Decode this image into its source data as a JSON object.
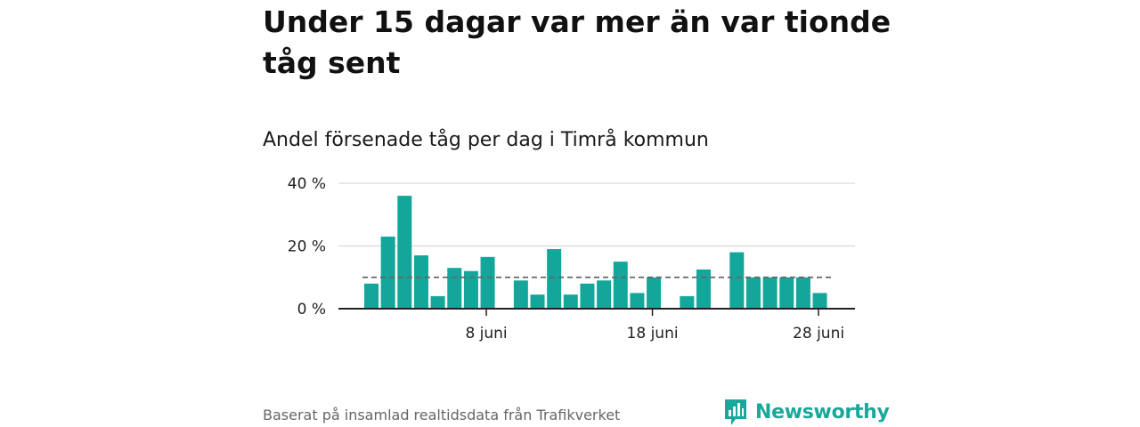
{
  "title": "Under 15 dagar var mer än var tionde tåg sent",
  "subtitle": "Andel försenade tåg per dag i Timrå kommun",
  "source": "Baserat på insamlad realtidsdata från Trafikverket",
  "brand": {
    "name": "Newsworthy",
    "color": "#1aa89a"
  },
  "chart_data": {
    "type": "bar",
    "x_unit": "day of June",
    "x": [
      1,
      2,
      3,
      4,
      5,
      6,
      7,
      8,
      9,
      10,
      11,
      12,
      13,
      14,
      15,
      16,
      17,
      18,
      19,
      20,
      21,
      22,
      23,
      24,
      25,
      26,
      27,
      28
    ],
    "values": [
      8,
      23,
      36,
      17,
      4,
      13,
      12,
      16.5,
      null,
      9,
      4.5,
      19,
      4.5,
      8,
      9,
      15,
      5,
      10,
      null,
      4,
      12.5,
      null,
      18,
      10,
      10,
      10,
      10,
      5
    ],
    "ylim": [
      0,
      40
    ],
    "yticks": [
      0,
      20,
      40
    ],
    "ytick_labels": [
      "0 %",
      "20 %",
      "40 %"
    ],
    "xtick_days": [
      8,
      18,
      28
    ],
    "xtick_labels": [
      "8 juni",
      "18 juni",
      "28 juni"
    ],
    "reference_line": 10,
    "bar_color": "#13a69a",
    "grid": true
  }
}
